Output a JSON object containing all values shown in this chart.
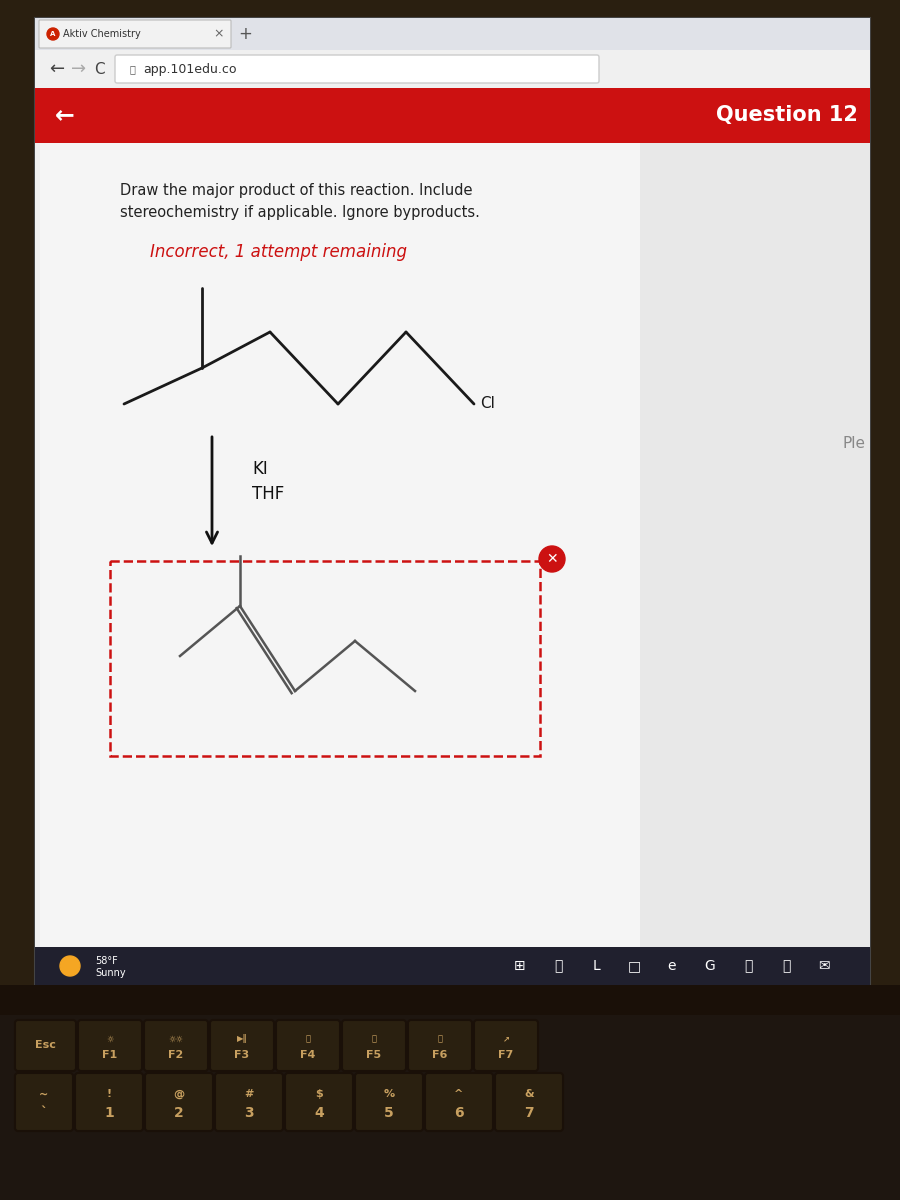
{
  "bg_laptop": "#2a1f10",
  "bg_screen": "#e0e0e0",
  "header_red": "#cc1111",
  "header_text": "Question 12",
  "tab_title": "Aktiv Chemistry",
  "url": "app.101edu.co",
  "question_text_line1": "Draw the major product of this reaction. Include",
  "question_text_line2": "stereochemistry if applicable. Ignore byproducts.",
  "incorrect_text": "Incorrect, 1 attempt remaining",
  "reagent1": "KI",
  "reagent2": "THF",
  "content_bg": "#f0f0f0",
  "white_panel_bg": "#f8f8f8",
  "taskbar_bg": "#2c2c3a",
  "keyboard_bg": "#1e1610",
  "key_bg": "#2a2010",
  "key_text": "#c8a060"
}
